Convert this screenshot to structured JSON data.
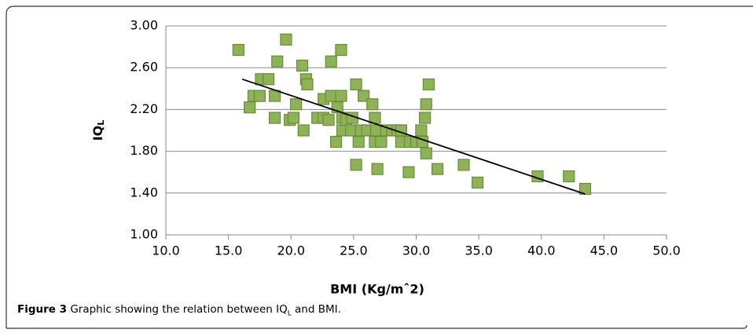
{
  "chart_data": {
    "type": "scatter",
    "xlabel": "BMI (Kg/mˆ2)",
    "ylabel": "IQ",
    "ylabel_sub": "L",
    "x": [
      15.8,
      16.7,
      17.0,
      17.5,
      17.6,
      18.2,
      18.7,
      18.7,
      18.9,
      19.6,
      19.9,
      20.2,
      20.4,
      20.9,
      21.2,
      21.3,
      21.0,
      22.1,
      22.6,
      22.6,
      23.0,
      23.2,
      23.2,
      23.6,
      23.7,
      24.0,
      24.0,
      24.1,
      24.1,
      24.4,
      24.8,
      24.9,
      25.2,
      25.2,
      25.4,
      25.6,
      25.8,
      26.1,
      26.5,
      26.7,
      26.7,
      26.9,
      26.8,
      27.2,
      27.6,
      28.1,
      28.5,
      28.8,
      28.8,
      29.4,
      29.5,
      30.0,
      30.4,
      30.5,
      30.7,
      30.8,
      30.8,
      31.0,
      31.7,
      33.8,
      34.9,
      39.7,
      42.2,
      43.5
    ],
    "values": [
      2.77,
      2.22,
      2.33,
      2.33,
      2.49,
      2.49,
      2.33,
      2.12,
      2.66,
      2.87,
      2.1,
      2.12,
      2.25,
      2.62,
      2.49,
      2.44,
      2.0,
      2.12,
      2.12,
      2.3,
      2.1,
      2.33,
      2.66,
      1.89,
      2.22,
      2.77,
      2.33,
      2.12,
      2.0,
      2.1,
      2.0,
      2.12,
      1.67,
      2.44,
      1.89,
      2.0,
      2.33,
      2.0,
      2.25,
      2.12,
      1.89,
      1.63,
      2.0,
      1.89,
      2.0,
      2.0,
      2.0,
      2.0,
      1.89,
      1.6,
      1.89,
      1.89,
      2.0,
      1.89,
      2.12,
      2.25,
      1.78,
      2.44,
      1.63,
      1.67,
      1.5,
      1.56,
      1.56,
      1.44
    ],
    "color": "#8db356",
    "edge_color": "#6a8c3c",
    "trendline": {
      "x": [
        16.1,
        43.5
      ],
      "values": [
        2.49,
        1.39
      ],
      "color": "#000000"
    },
    "xlim": [
      10,
      50
    ],
    "ylim": [
      1,
      3
    ],
    "xticks": [
      {
        "value": 10,
        "label": "10.0"
      },
      {
        "value": 15,
        "label": "15.0"
      },
      {
        "value": 20,
        "label": "20.0"
      },
      {
        "value": 25,
        "label": "25.0"
      },
      {
        "value": 30,
        "label": "30.0"
      },
      {
        "value": 35,
        "label": "35.0"
      },
      {
        "value": 40,
        "label": "40.0"
      },
      {
        "value": 45,
        "label": "45.0"
      },
      {
        "value": 50,
        "label": "50.0"
      }
    ],
    "yticks": [
      {
        "value": 1,
        "label": "1.00"
      },
      {
        "value": 1.4,
        "label": "1.40"
      },
      {
        "value": 1.8,
        "label": "1.80"
      },
      {
        "value": 2.2,
        "label": "2.20"
      },
      {
        "value": 2.6,
        "label": "2.60"
      },
      {
        "value": 3,
        "label": "3.00"
      }
    ],
    "grid": true
  },
  "caption": {
    "label": "Figure 3",
    "text": "Graphic showing the relation between IQ",
    "sub": "L",
    "tail": "and BMI."
  }
}
